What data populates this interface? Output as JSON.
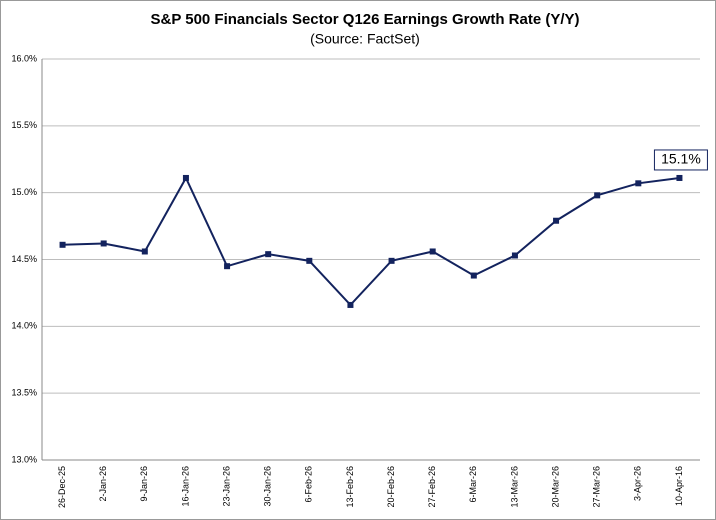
{
  "chart_data": {
    "type": "line",
    "title": "S&P 500 Financials Sector Q126 Earnings Growth Rate (Y/Y)",
    "subtitle": "(Source: FactSet)",
    "categories": [
      "26-Dec-25",
      "2-Jan-26",
      "9-Jan-26",
      "16-Jan-26",
      "23-Jan-26",
      "30-Jan-26",
      "6-Feb-26",
      "13-Feb-26",
      "20-Feb-26",
      "27-Feb-26",
      "6-Mar-26",
      "13-Mar-26",
      "20-Mar-26",
      "27-Mar-26",
      "3-Apr-26",
      "10-Apr-16"
    ],
    "values": [
      14.61,
      14.62,
      14.56,
      15.11,
      14.45,
      14.54,
      14.49,
      14.16,
      14.49,
      14.56,
      14.38,
      14.53,
      14.79,
      14.98,
      15.07,
      15.11
    ],
    "value_labels": [
      null,
      null,
      null,
      null,
      null,
      null,
      null,
      null,
      null,
      null,
      null,
      null,
      null,
      null,
      null,
      "15.1%"
    ],
    "color": "#13235e",
    "ylim": [
      13,
      16
    ],
    "yticks": [
      {
        "value": 13,
        "label": "13.0%"
      },
      {
        "value": 13.5,
        "label": "13.5%"
      },
      {
        "value": 14,
        "label": "14.0%"
      },
      {
        "value": 14.5,
        "label": "14.5%"
      },
      {
        "value": 15,
        "label": "15.0%"
      },
      {
        "value": 15.5,
        "label": "15.5%"
      },
      {
        "value": 16,
        "label": "16.0%"
      }
    ],
    "grid": true
  }
}
